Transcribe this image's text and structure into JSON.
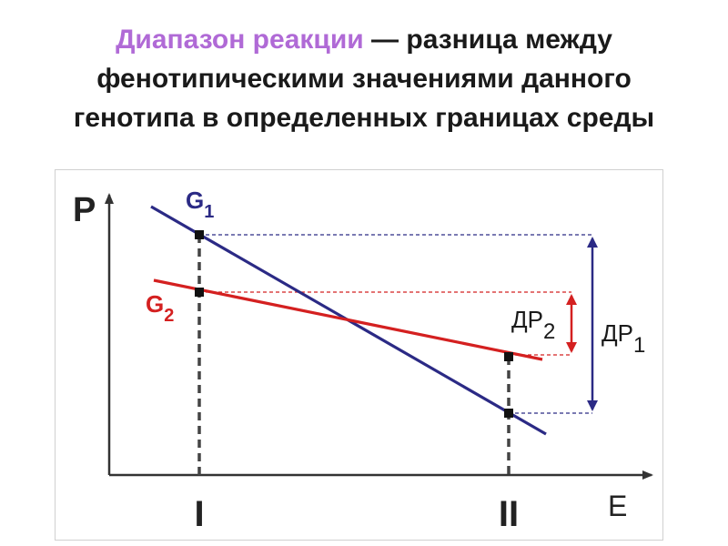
{
  "title": {
    "term": "Диапазон реакции",
    "definition": " — разница между фенотипическими значениями данного генотипа в определенных границах среды"
  },
  "axes": {
    "y_label": "P",
    "x_label": "E",
    "tick_1": "I",
    "tick_2": "II"
  },
  "lines": {
    "g1": {
      "letter": "G",
      "sub": "1",
      "color": "#2b2a85"
    },
    "g2": {
      "letter": "G",
      "sub": "2",
      "color": "#d42020"
    }
  },
  "ranges": {
    "dp1": {
      "letter": "ДР",
      "sub": "1",
      "color": "#2b2a85"
    },
    "dp2": {
      "letter": "ДР",
      "sub": "2",
      "color": "#d42020"
    }
  }
}
